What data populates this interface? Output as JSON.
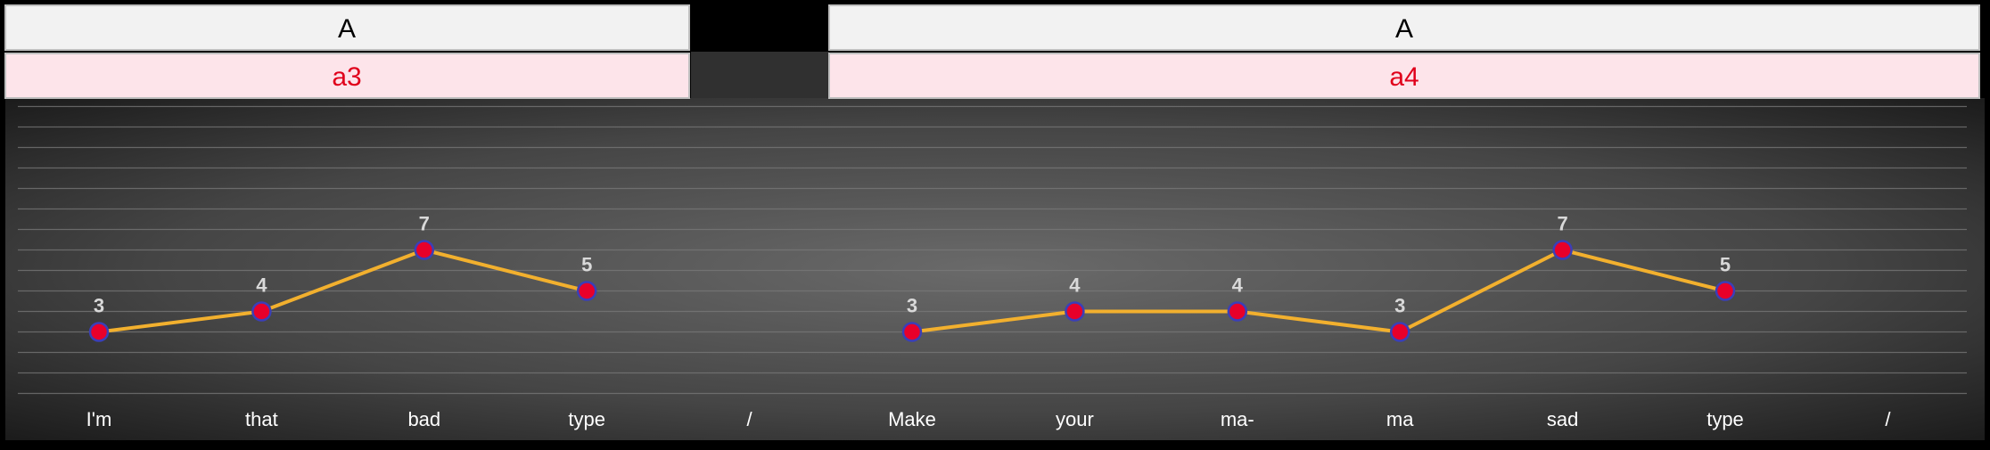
{
  "headers": [
    {
      "section": "A",
      "segment": "a3"
    },
    {
      "section": "A",
      "segment": "a4"
    }
  ],
  "colors": {
    "background": "#000000",
    "line": "#f2b02e",
    "marker_fill": "#e8002a",
    "marker_stroke": "#3b3fb8",
    "section_header_bg": "#f2f2f2",
    "segment_header_bg": "#fde4ea",
    "segment_text": "#e0001b",
    "tick_label": "#ffffff",
    "data_label": "#d9d9d9"
  },
  "chart_data": {
    "type": "line",
    "categories": [
      "I'm",
      "that",
      "bad",
      "type",
      "/",
      "Make",
      "your",
      "ma-",
      "ma",
      "sad",
      "type",
      "/"
    ],
    "series": [
      {
        "values": [
          3,
          4,
          7,
          5,
          null,
          3,
          4,
          4,
          3,
          7,
          5,
          null
        ]
      }
    ],
    "ylim": [
      0,
      14
    ],
    "grid": true,
    "legend": "none"
  }
}
